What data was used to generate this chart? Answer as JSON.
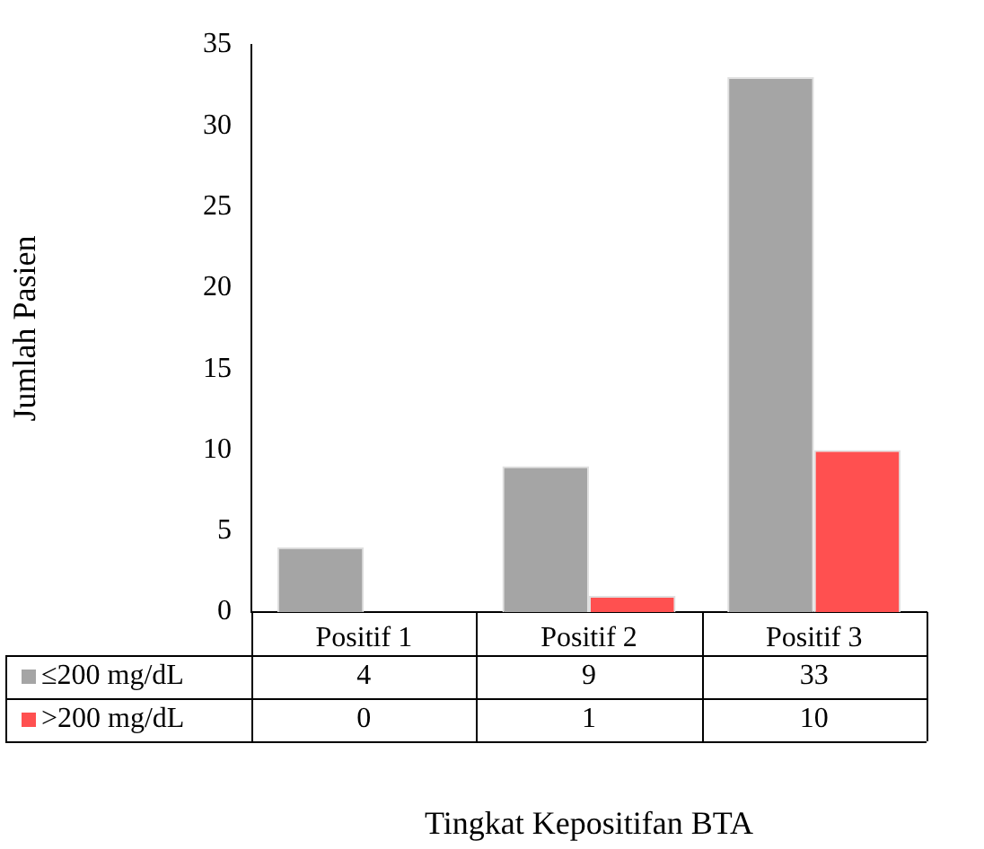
{
  "chart_data": {
    "type": "bar",
    "xlabel": "Tingkat Kepositifan BTA",
    "ylabel": "Jumlah Pasien",
    "categories": [
      "Positif 1",
      "Positif 2",
      "Positif 3"
    ],
    "series": [
      {
        "name": "≤200 mg/dL",
        "color": "#a5a5a5",
        "values": [
          4,
          9,
          33
        ]
      },
      {
        "name": ">200 mg/dL",
        "color": "#ff5050",
        "values": [
          0,
          1,
          10
        ]
      }
    ],
    "ylim": [
      0,
      35
    ],
    "yticks": [
      0,
      5,
      10,
      15,
      20,
      25,
      30,
      35
    ],
    "grid": false,
    "legend": "bottom left",
    "data_labels": true
  }
}
